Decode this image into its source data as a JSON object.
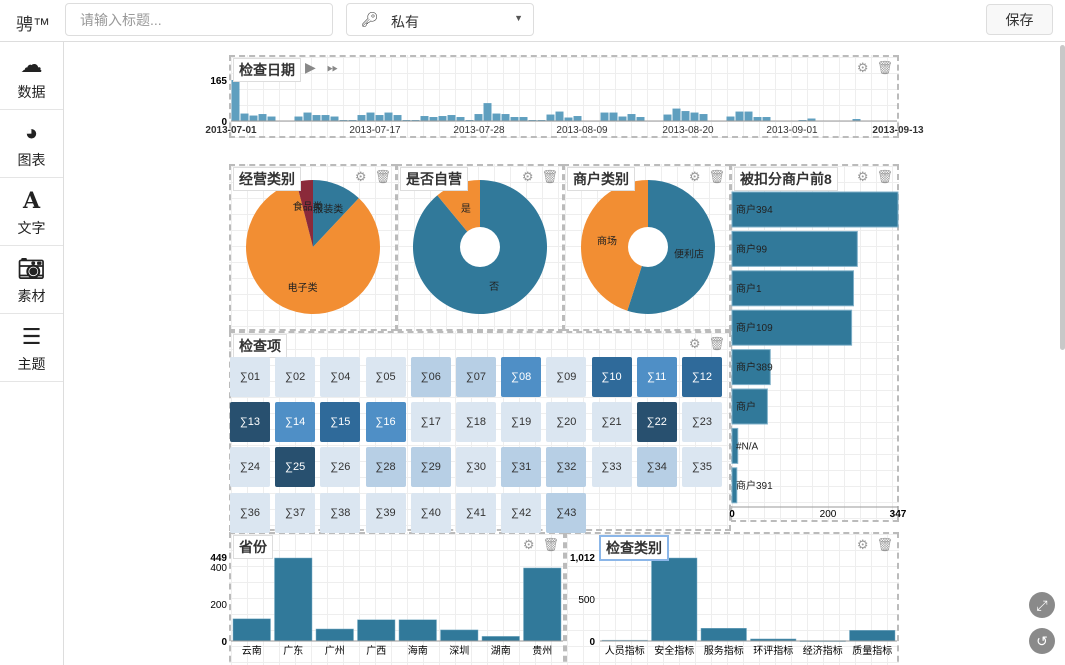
{
  "header": {
    "logo": "骋™",
    "title_placeholder": "请输入标题...",
    "privacy": "私有",
    "save": "保存"
  },
  "sidebar": {
    "items": [
      {
        "icon": "cloud-upload-icon",
        "label": "数据"
      },
      {
        "icon": "pie-chart-icon",
        "label": "图表"
      },
      {
        "icon": "text-icon",
        "label": "文字"
      },
      {
        "icon": "camera-icon",
        "label": "素材"
      },
      {
        "icon": "theme-icon",
        "label": "主题"
      }
    ]
  },
  "panels": {
    "timeline": "检查日期",
    "business_type": "经营类别",
    "self_run": "是否自营",
    "merchant_type": "商户类别",
    "top8": "被扣分商户前8",
    "items": "检查项",
    "province": "省份",
    "check_type": "检查类别"
  },
  "colors": {
    "teal": "#31799a",
    "orange": "#f28e33",
    "darkred": "#8b2a3a"
  },
  "chart_data": [
    {
      "id": "timeline",
      "type": "bar",
      "title": "检查日期",
      "x_start": "2013-07-01",
      "x_end": "2013-09-13",
      "xticks": [
        "2013-07-01",
        "2013-07-17",
        "2013-07-28",
        "2013-08-09",
        "2013-08-20",
        "2013-09-01",
        "2013-09-13"
      ],
      "yticks": [
        "165",
        "0"
      ],
      "ylim": [
        0,
        165
      ],
      "values": [
        165,
        30,
        22,
        28,
        18,
        2,
        2,
        18,
        34,
        24,
        24,
        18,
        4,
        4,
        24,
        34,
        24,
        34,
        24,
        4,
        4,
        20,
        16,
        20,
        24,
        16,
        4,
        28,
        72,
        30,
        28,
        16,
        16,
        4,
        4,
        26,
        38,
        14,
        20,
        2,
        2,
        34,
        34,
        18,
        28,
        16,
        2,
        2,
        26,
        50,
        40,
        34,
        28,
        2,
        2,
        18,
        38,
        38,
        16,
        16,
        2,
        2,
        2,
        4,
        10,
        2,
        2,
        2,
        2,
        8,
        2,
        2,
        2,
        2
      ]
    },
    {
      "id": "business_type",
      "type": "pie",
      "title": "经营类别",
      "slices": [
        {
          "label": "服装类",
          "value": 12
        },
        {
          "label": "电子类",
          "value": 84
        },
        {
          "label": "食品类",
          "value": 4
        }
      ]
    },
    {
      "id": "self_run",
      "type": "pie",
      "title": "是否自营",
      "donut": true,
      "slices": [
        {
          "label": "否",
          "value": 89
        },
        {
          "label": "是",
          "value": 11
        }
      ]
    },
    {
      "id": "merchant_type",
      "type": "pie",
      "title": "商户类别",
      "donut": true,
      "slices": [
        {
          "label": "便利店",
          "value": 55
        },
        {
          "label": "商场",
          "value": 45
        }
      ]
    },
    {
      "id": "top8",
      "type": "bar",
      "orientation": "horizontal",
      "title": "被扣分商户前8",
      "categories": [
        "商户394",
        "商户99",
        "商户1",
        "商户109",
        "商户389",
        "商户",
        "#N/A",
        "商户391"
      ],
      "values": [
        347,
        262,
        254,
        250,
        80,
        74,
        12,
        10
      ],
      "xticks": [
        "0",
        "200",
        "347"
      ],
      "xlim": [
        0,
        347
      ]
    },
    {
      "id": "items",
      "type": "heatmap",
      "title": "检查项",
      "cells": [
        [
          "∑01",
          0
        ],
        [
          "∑02",
          0
        ],
        [
          "∑04",
          0
        ],
        [
          "∑05",
          0
        ],
        [
          "∑06",
          1
        ],
        [
          "∑07",
          1
        ],
        [
          "∑08",
          2
        ],
        [
          "∑09",
          0
        ],
        [
          "∑10",
          3
        ],
        [
          "∑11",
          2
        ],
        [
          "∑12",
          3
        ],
        [
          "∑13",
          4
        ],
        [
          "∑14",
          2
        ],
        [
          "∑15",
          3
        ],
        [
          "∑16",
          2
        ],
        [
          "∑17",
          0
        ],
        [
          "∑18",
          0
        ],
        [
          "∑19",
          0
        ],
        [
          "∑20",
          0
        ],
        [
          "∑21",
          0
        ],
        [
          "∑22",
          4
        ],
        [
          "∑23",
          0
        ],
        [
          "∑24",
          0
        ],
        [
          "∑25",
          4
        ],
        [
          "∑26",
          0
        ],
        [
          "∑28",
          1
        ],
        [
          "∑29",
          1
        ],
        [
          "∑30",
          0
        ],
        [
          "∑31",
          1
        ],
        [
          "∑32",
          1
        ],
        [
          "∑33",
          0
        ],
        [
          "∑34",
          1
        ],
        [
          "∑35",
          0
        ],
        [
          "∑36",
          0
        ],
        [
          "∑37",
          0
        ],
        [
          "∑38",
          0
        ],
        [
          "∑39",
          0
        ],
        [
          "∑40",
          0
        ],
        [
          "∑41",
          0
        ],
        [
          "∑42",
          0
        ],
        [
          "∑43",
          1
        ]
      ],
      "level_colors": [
        "#dbe6f1",
        "#b7cfe5",
        "#4f8fc6",
        "#2f6a9a",
        "#28506f"
      ]
    },
    {
      "id": "province",
      "type": "bar",
      "title": "省份",
      "categories": [
        "云南",
        "广东",
        "广州",
        "广西",
        "海南",
        "深圳",
        "湖南",
        "贵州"
      ],
      "values": [
        120,
        449,
        65,
        115,
        115,
        60,
        25,
        395
      ],
      "yticks": [
        "449",
        "400",
        "200",
        "0"
      ],
      "ylim": [
        0,
        449
      ]
    },
    {
      "id": "check_type",
      "type": "bar",
      "title": "检查类别",
      "categories": [
        "人员指标",
        "安全指标",
        "服务指标",
        "环评指标",
        "经济指标",
        "质量指标"
      ],
      "values": [
        10,
        1012,
        155,
        25,
        5,
        130
      ],
      "yticks": [
        "1,012",
        "500",
        "0"
      ],
      "ylim": [
        0,
        1012
      ]
    }
  ]
}
